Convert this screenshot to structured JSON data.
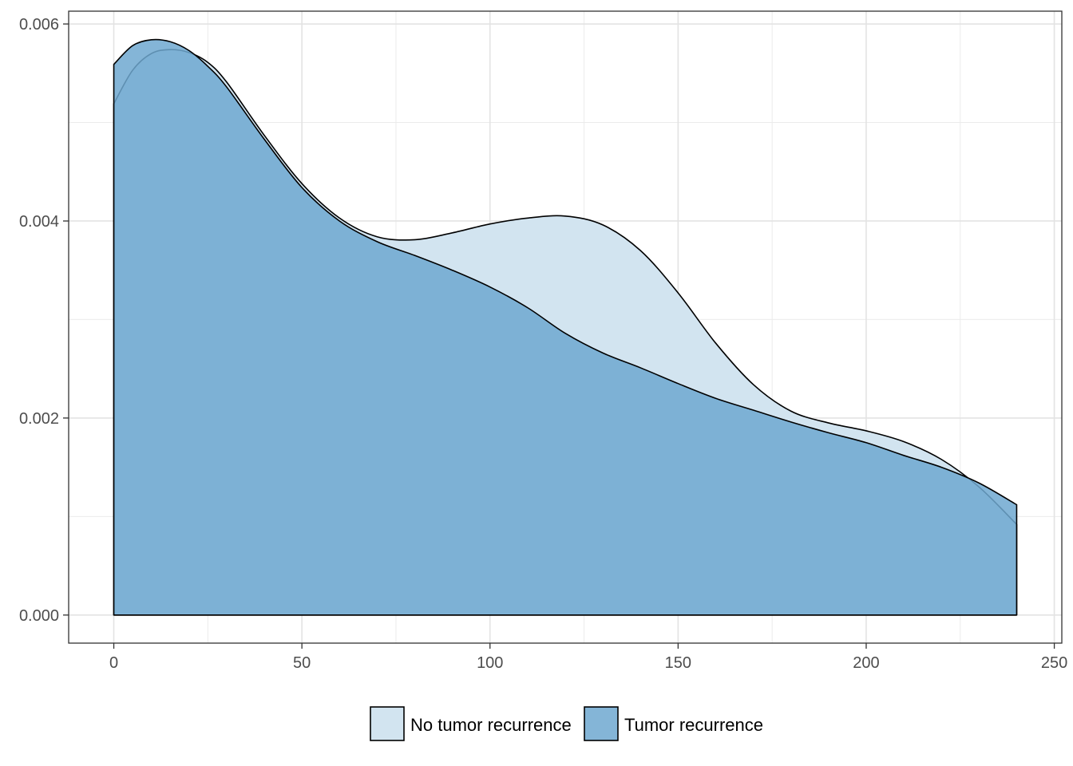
{
  "chart_data": {
    "type": "area",
    "title": "",
    "xlabel": "",
    "ylabel": "",
    "xlim": [
      -12,
      252
    ],
    "ylim": [
      -0.000285,
      0.00613
    ],
    "x_ticks": [
      0,
      50,
      100,
      150,
      200,
      250
    ],
    "x_tick_labels": [
      "0",
      "50",
      "100",
      "150",
      "200",
      "250"
    ],
    "y_ticks": [
      0.0,
      0.002,
      0.004,
      0.006
    ],
    "y_tick_labels": [
      "0.000",
      "0.002",
      "0.004",
      "0.006"
    ],
    "grid": true,
    "legend_position": "bottom",
    "series": [
      {
        "name": "No tumor recurrence",
        "color": "#d2e4f0",
        "x": [
          0,
          5,
          10,
          15,
          20,
          25,
          30,
          40,
          50,
          60,
          70,
          80,
          90,
          100,
          110,
          120,
          130,
          140,
          150,
          160,
          170,
          180,
          190,
          200,
          210,
          220,
          230,
          240
        ],
        "y": [
          0.00519,
          0.00553,
          0.0057,
          0.00574,
          0.00571,
          0.00561,
          0.00541,
          0.00487,
          0.00438,
          0.00403,
          0.00384,
          0.00381,
          0.00388,
          0.00397,
          0.00403,
          0.00405,
          0.00396,
          0.0037,
          0.00327,
          0.00276,
          0.00234,
          0.00207,
          0.00195,
          0.00187,
          0.00176,
          0.00158,
          0.0013,
          0.00092
        ]
      },
      {
        "name": "Tumor recurrence",
        "color": "#6fa8d0",
        "x": [
          0,
          5,
          10,
          15,
          20,
          25,
          30,
          40,
          50,
          60,
          70,
          80,
          90,
          100,
          110,
          120,
          130,
          140,
          150,
          160,
          170,
          180,
          190,
          200,
          210,
          220,
          230,
          240
        ],
        "y": [
          0.00559,
          0.00578,
          0.00584,
          0.00582,
          0.00573,
          0.00557,
          0.00536,
          0.00483,
          0.00434,
          0.004,
          0.00379,
          0.00365,
          0.0035,
          0.00333,
          0.00312,
          0.00286,
          0.00266,
          0.00251,
          0.00235,
          0.0022,
          0.00208,
          0.00196,
          0.00185,
          0.00175,
          0.00162,
          0.0015,
          0.00134,
          0.00112
        ]
      }
    ]
  }
}
